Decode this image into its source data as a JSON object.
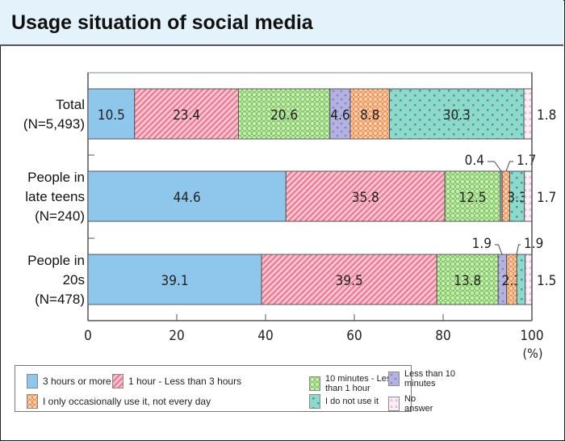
{
  "header": {
    "title": "Usage situation of social media"
  },
  "chart_data": {
    "type": "bar",
    "orientation": "horizontal",
    "stacked": true,
    "categories": [
      [
        "Total",
        "(N=5,493)"
      ],
      [
        "People in",
        "late teens",
        "(N=240)"
      ],
      [
        "People in",
        "20s",
        "(N=478)"
      ]
    ],
    "series": [
      {
        "name": "3 hours or more",
        "color": "#8fc6ec",
        "values": [
          10.5,
          44.6,
          39.1
        ],
        "labels": [
          "10.5",
          "44.6",
          "39.1"
        ]
      },
      {
        "name": "1 hour - Less than 3 hours",
        "color": "#f5a3b6",
        "values": [
          23.4,
          35.8,
          39.5
        ],
        "labels": [
          "23.4",
          "35.8",
          "39.5"
        ]
      },
      {
        "name": "10 minutes - Less than 1 hour",
        "color": "#a8dc8c",
        "values": [
          20.6,
          12.5,
          13.8
        ],
        "labels": [
          "20.6",
          "12.5",
          "13.8"
        ]
      },
      {
        "name": "Less than 10 minutes",
        "color": "#aaa9dc",
        "values": [
          4.6,
          0.4,
          1.9
        ],
        "labels": [
          "4.6",
          "0.4",
          "1.9"
        ]
      },
      {
        "name": "I only occasionally use it, not every day",
        "color": "#f7a470",
        "values": [
          8.8,
          1.7,
          2.3
        ],
        "labels": [
          "8.8",
          "1.7",
          "2.3"
        ]
      },
      {
        "name": "I do not use it",
        "color": "#80d2c4",
        "values": [
          30.3,
          3.3,
          1.9
        ],
        "labels": [
          "30.3",
          "3.3",
          "1.9"
        ]
      },
      {
        "name": "No answer",
        "color": "#f8e6f2",
        "values": [
          1.8,
          1.7,
          1.5
        ],
        "labels": [
          "1.8",
          "1.7",
          "1.5"
        ]
      }
    ],
    "xlim": [
      0,
      100
    ],
    "xticks": [
      "0",
      "20",
      "40",
      "60",
      "80",
      "100"
    ],
    "xunit": "(%)",
    "legend_position": "bottom",
    "grid": false
  }
}
